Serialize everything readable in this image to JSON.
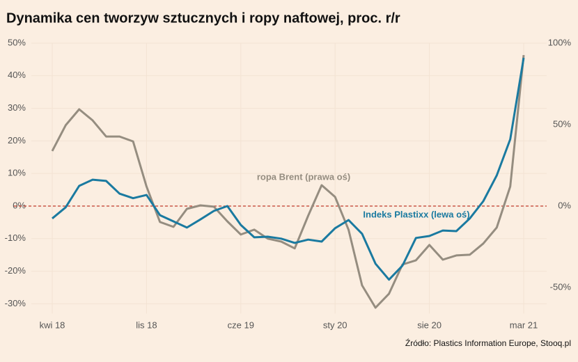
{
  "chart_data": {
    "type": "line",
    "title": "Dynamika cen tworzyw sztucznych i ropy naftowej, proc. r/r",
    "source": "Źródło: Plastics Information Europe, Stooq.pl",
    "categories": [
      "kwi 18",
      null,
      null,
      null,
      null,
      null,
      null,
      "lis 18",
      null,
      null,
      null,
      null,
      null,
      null,
      "cze 19",
      null,
      null,
      null,
      null,
      null,
      null,
      "sty 20",
      null,
      null,
      null,
      null,
      null,
      null,
      "sie 20",
      null,
      null,
      null,
      null,
      null,
      null,
      "mar 21"
    ],
    "series": [
      {
        "name": "Indeks Plastixx (lewa oś)",
        "color": "#1a7aa0",
        "axis": "y",
        "values": [
          -3.8,
          -0.4,
          6.2,
          8.1,
          7.7,
          3.8,
          2.4,
          3.4,
          -2.8,
          -4.7,
          -6.6,
          -4.1,
          -1.5,
          0,
          -5.8,
          -9.6,
          -9.4,
          -10,
          -11.3,
          -10.3,
          -10.9,
          -6.8,
          -4.3,
          -8.5,
          -17.7,
          -22.6,
          -18.3,
          -9.8,
          -9.2,
          -7.5,
          -7.7,
          -3.8,
          1.5,
          9.4,
          20.5,
          45.5
        ]
      },
      {
        "name": "ropa Brent (prawa oś)",
        "color": "#958d80",
        "axis": "y2",
        "values": [
          33.8,
          49.6,
          59.4,
          52.6,
          42.7,
          42.7,
          39.7,
          12,
          -9.8,
          -12.8,
          -1.7,
          0.4,
          -0.4,
          -9.4,
          -17.5,
          -14.5,
          -20,
          -21.8,
          -26,
          -6,
          12.8,
          5.6,
          -14.5,
          -48.7,
          -62.4,
          -53.8,
          -35.9,
          -33.3,
          -23.9,
          -32.9,
          -30.3,
          -29.9,
          -23,
          -13.2,
          12,
          92.7
        ]
      }
    ],
    "ylim": [
      -33,
      50
    ],
    "yticks": [
      {
        "value": -30,
        "label": "-30%"
      },
      {
        "value": -20,
        "label": "-20%"
      },
      {
        "value": -10,
        "label": "-10%"
      },
      {
        "value": 0,
        "label": "0%"
      },
      {
        "value": 10,
        "label": "10%"
      },
      {
        "value": 20,
        "label": "20%"
      },
      {
        "value": 30,
        "label": "30%"
      },
      {
        "value": 40,
        "label": "40%"
      },
      {
        "value": 50,
        "label": "50%"
      }
    ],
    "y2lim": [
      -66,
      100
    ],
    "y2ticks": [
      {
        "value": -50,
        "label": "-50%"
      },
      {
        "value": 0,
        "label": "0%"
      },
      {
        "value": 50,
        "label": "50%"
      },
      {
        "value": 100,
        "label": "100%"
      }
    ],
    "grid": true,
    "zero_line_color": "#c0392b"
  }
}
